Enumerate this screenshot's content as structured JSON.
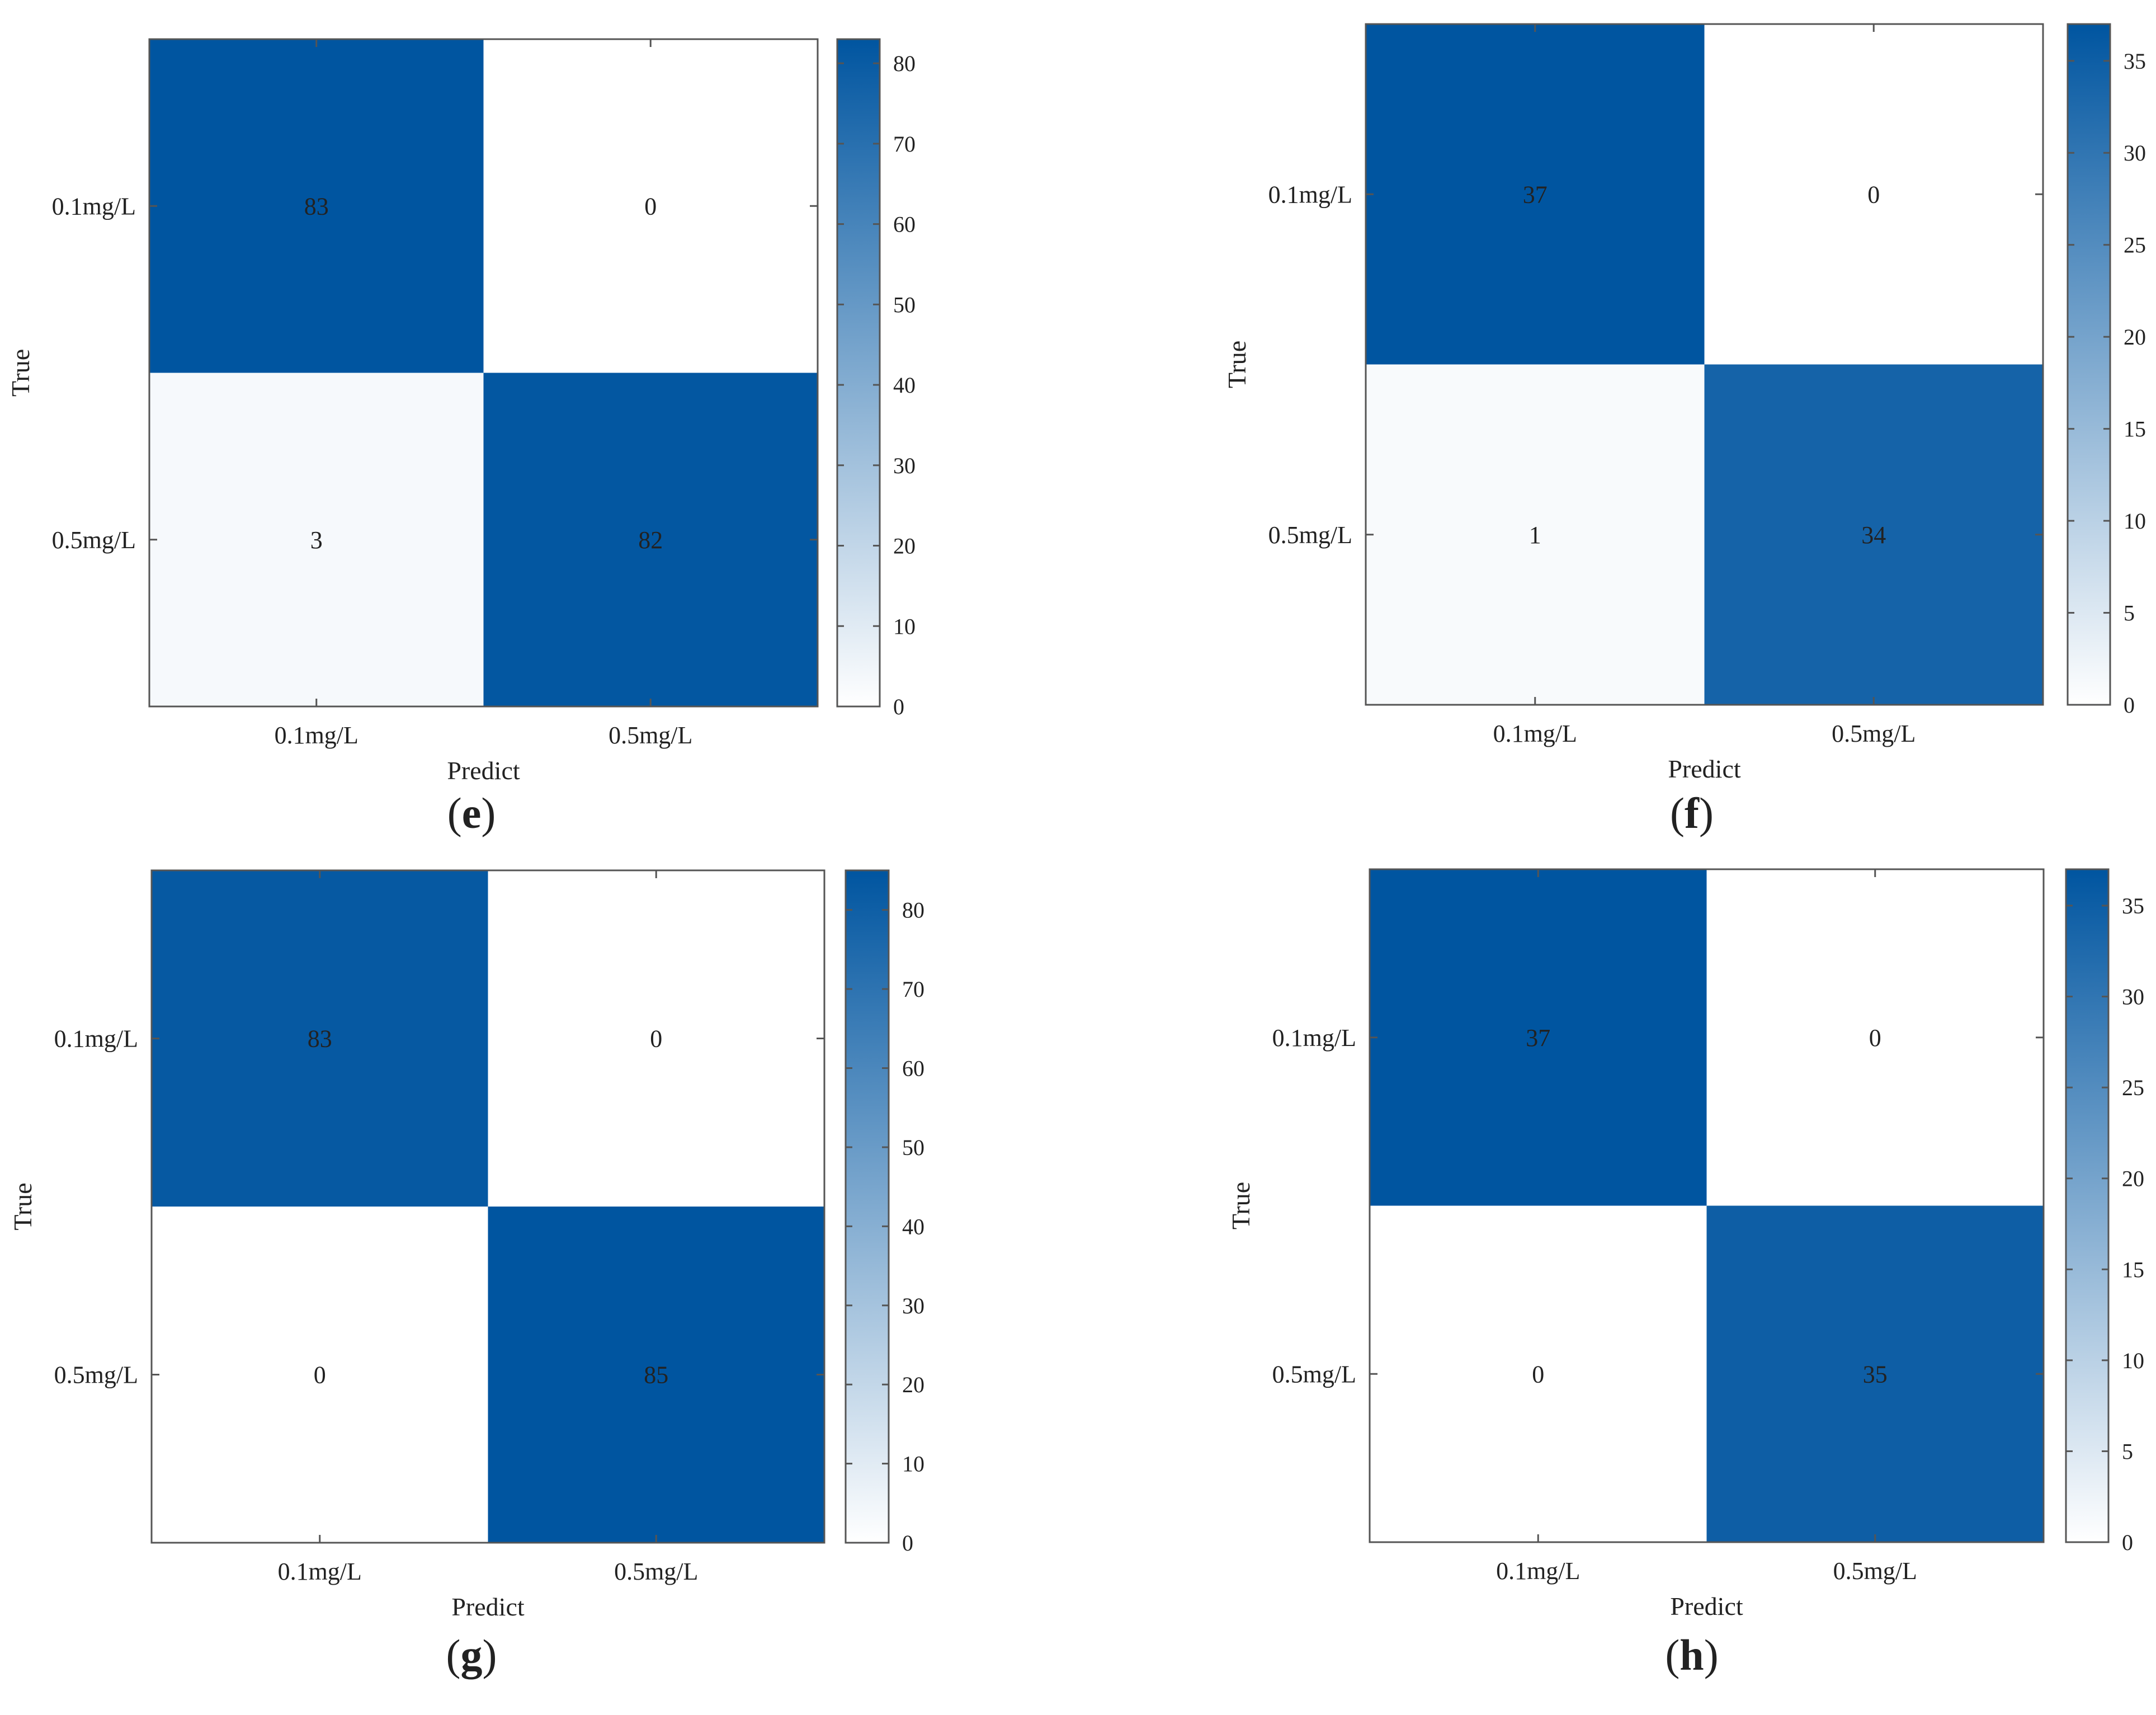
{
  "chart_data": [
    {
      "type": "heatmap",
      "panel": "e",
      "xlabel": "Predict",
      "ylabel": "True",
      "x_categories": [
        "0.1mg/L",
        "0.5mg/L"
      ],
      "y_categories": [
        "0.1mg/L",
        "0.5mg/L"
      ],
      "matrix": [
        [
          83,
          0
        ],
        [
          3,
          82
        ]
      ],
      "colorbar": {
        "min": 0,
        "max": 83,
        "ticks": [
          0,
          10,
          20,
          30,
          40,
          50,
          60,
          70,
          80
        ],
        "tick_labels": [
          "0",
          "10",
          "20",
          "30",
          "40",
          "50",
          "60",
          "70",
          "80"
        ]
      }
    },
    {
      "type": "heatmap",
      "panel": "f",
      "xlabel": "Predict",
      "ylabel": "True",
      "x_categories": [
        "0.1mg/L",
        "0.5mg/L"
      ],
      "y_categories": [
        "0.1mg/L",
        "0.5mg/L"
      ],
      "matrix": [
        [
          37,
          0
        ],
        [
          1,
          34
        ]
      ],
      "colorbar": {
        "min": 0,
        "max": 37,
        "ticks": [
          0,
          5,
          10,
          15,
          20,
          25,
          30,
          35
        ],
        "tick_labels": [
          "0",
          "5",
          "10",
          "15",
          "20",
          "25",
          "30",
          "35"
        ]
      }
    },
    {
      "type": "heatmap",
      "panel": "g",
      "xlabel": "Predict",
      "ylabel": "True",
      "x_categories": [
        "0.1mg/L",
        "0.5mg/L"
      ],
      "y_categories": [
        "0.1mg/L",
        "0.5mg/L"
      ],
      "matrix": [
        [
          83,
          0
        ],
        [
          0,
          85
        ]
      ],
      "colorbar": {
        "min": 0,
        "max": 85,
        "ticks": [
          0,
          10,
          20,
          30,
          40,
          50,
          60,
          70,
          80
        ],
        "tick_labels": [
          "0",
          "10",
          "20",
          "30",
          "40",
          "50",
          "60",
          "70",
          "80"
        ]
      }
    },
    {
      "type": "heatmap",
      "panel": "h",
      "xlabel": "Predict",
      "ylabel": "True",
      "x_categories": [
        "0.1mg/L",
        "0.5mg/L"
      ],
      "y_categories": [
        "0.1mg/L",
        "0.5mg/L"
      ],
      "matrix": [
        [
          37,
          0
        ],
        [
          0,
          35
        ]
      ],
      "colorbar": {
        "min": 0,
        "max": 37,
        "ticks": [
          0,
          5,
          10,
          15,
          20,
          25,
          30,
          35
        ],
        "tick_labels": [
          "0",
          "5",
          "10",
          "15",
          "20",
          "25",
          "30",
          "35"
        ]
      }
    }
  ],
  "panel_captions": [
    {
      "open": "(",
      "letter": "e",
      "close": ")"
    },
    {
      "open": "(",
      "letter": "f",
      "close": ")"
    },
    {
      "open": "(",
      "letter": "g",
      "close": ")"
    },
    {
      "open": "(",
      "letter": "h",
      "close": ")"
    }
  ],
  "colors": {
    "high": "#0055a0",
    "low": "#ffffff",
    "axis": "#555555",
    "text": "#222222"
  }
}
